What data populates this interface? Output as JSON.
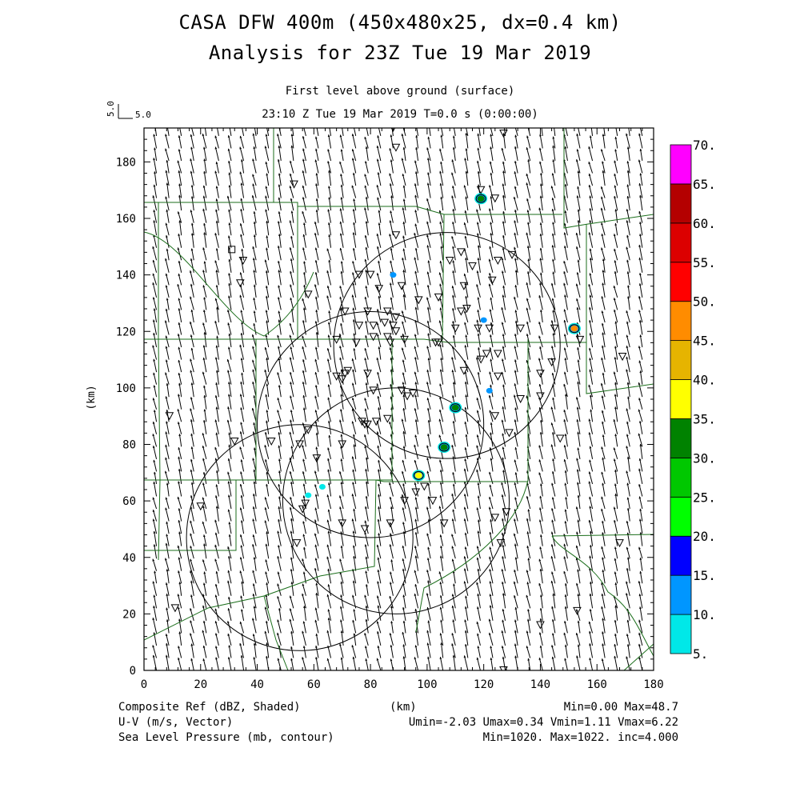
{
  "title_line1": "CASA DFW 400m (450x480x25, dx=0.4 km)",
  "title_line2": "Analysis for 23Z Tue 19 Mar 2019",
  "subtitle_level": "First level above ground (surface)",
  "subtitle_time": "23:10 Z Tue 19 Mar 2019    T=0.0 s (0:00:00)",
  "vector_scale": {
    "vertical_label": "5.0",
    "horizontal_label": "5.0"
  },
  "footer": {
    "line1_left": "Composite Ref (dBZ, Shaded)",
    "line1_center": "(km)",
    "line1_right": "Min=0.00 Max=48.7",
    "line2_left": "U-V (m/s, Vector)",
    "line2_right": "Umin=-2.03 Umax=0.34 Vmin=1.11 Vmax=6.22",
    "line3_left": "Sea Level Pressure (mb, contour)",
    "line3_right": "Min=1020. Max=1022. inc=4.000"
  },
  "chart_data": {
    "type": "heatmap",
    "xlabel": "(km)",
    "ylabel": "(km)",
    "xlim": [
      0,
      180
    ],
    "ylim": [
      0,
      192
    ],
    "x_ticks": [
      "0",
      "20",
      "40",
      "60",
      "80",
      "100",
      "120",
      "140",
      "160",
      "180"
    ],
    "y_ticks": [
      "0",
      "20",
      "40",
      "60",
      "80",
      "100",
      "120",
      "140",
      "160",
      "180"
    ],
    "colorbar": {
      "levels": [
        "5.",
        "10.",
        "15.",
        "20.",
        "25.",
        "30.",
        "35.",
        "40.",
        "45.",
        "50.",
        "55.",
        "60.",
        "65.",
        "70."
      ],
      "colors": [
        "#00e8e8",
        "#0096ff",
        "#0000ff",
        "#00ff00",
        "#00c800",
        "#008200",
        "#ffff00",
        "#e6b400",
        "#ff8c00",
        "#ff0000",
        "#dc0000",
        "#b40000",
        "#ff00ff"
      ]
    },
    "wind_vector_mean_uv": [
      -0.8,
      4.0
    ],
    "reflectivity_cells": [
      {
        "x": 119,
        "y": 167,
        "dbz": 30
      },
      {
        "x": 152,
        "y": 121,
        "dbz": 45
      },
      {
        "x": 110,
        "y": 93,
        "dbz": 30
      },
      {
        "x": 106,
        "y": 79,
        "dbz": 30
      },
      {
        "x": 97,
        "y": 69,
        "dbz": 35
      },
      {
        "x": 88,
        "y": 140,
        "dbz": 10
      },
      {
        "x": 120,
        "y": 124,
        "dbz": 10
      },
      {
        "x": 122,
        "y": 99,
        "dbz": 10
      },
      {
        "x": 58,
        "y": 62,
        "dbz": 5
      },
      {
        "x": 63,
        "y": 65,
        "dbz": 5
      }
    ],
    "radar_range_rings": [
      {
        "x": 107,
        "y": 115,
        "r": 40
      },
      {
        "x": 80,
        "y": 87,
        "r": 40
      },
      {
        "x": 89,
        "y": 60,
        "r": 40
      },
      {
        "x": 55,
        "y": 47,
        "r": 40
      }
    ]
  }
}
